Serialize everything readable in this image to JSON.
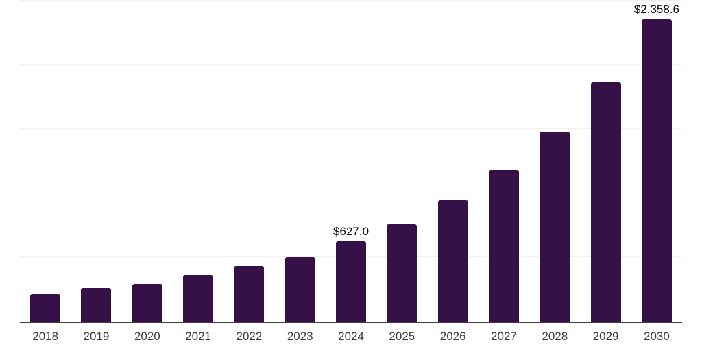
{
  "chart_data": {
    "type": "bar",
    "title": "",
    "xlabel": "",
    "ylabel": "",
    "categories": [
      "2018",
      "2019",
      "2020",
      "2021",
      "2022",
      "2023",
      "2024",
      "2025",
      "2026",
      "2027",
      "2028",
      "2029",
      "2030"
    ],
    "values": [
      213,
      261,
      295,
      365,
      433,
      502,
      627.0,
      761,
      948,
      1182,
      1478,
      1865,
      2358.6
    ],
    "bar_labels": [
      "",
      "",
      "",
      "",
      "",
      "",
      "$627.0",
      "",
      "",
      "",
      "",
      "",
      "$2,358.6"
    ],
    "ylim": [
      0,
      2500
    ],
    "gridlines": [
      500,
      1000,
      1500,
      2000,
      2500
    ],
    "grid": true,
    "legend": false,
    "bar_color": "#351148",
    "colors": {
      "background": "#ffffff",
      "bar": "#351148",
      "axis_line": "#3f3f3f",
      "gridline": "#f0f0f0",
      "tick_label": "#3b3b3b",
      "value_label": "#0a0a0a"
    }
  }
}
